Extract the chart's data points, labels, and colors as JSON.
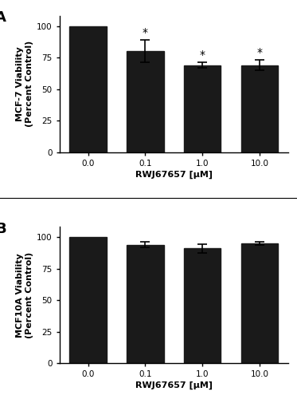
{
  "panel_A": {
    "categories": [
      "0.0",
      "0.1",
      "1.0",
      "10.0"
    ],
    "values": [
      100,
      80,
      69,
      69
    ],
    "errors": [
      0,
      9,
      2,
      4
    ],
    "significance": [
      "",
      "*",
      "*",
      "*"
    ],
    "ylabel": "MCF-7 Viability\n(Percent Control)",
    "xlabel": "RWJ67657 [μM]",
    "ylim": [
      0,
      108
    ],
    "yticks": [
      0,
      25,
      50,
      75,
      100
    ],
    "label": "A"
  },
  "panel_B": {
    "categories": [
      "0.0",
      "0.1",
      "1.0",
      "10.0"
    ],
    "values": [
      100,
      94,
      91,
      95
    ],
    "errors": [
      0,
      2.5,
      3.5,
      1.5
    ],
    "significance": [
      "",
      "",
      "",
      ""
    ],
    "ylabel": "MCF10A Viability\n(Percent Control)",
    "xlabel": "RWJ67657 [μM]",
    "ylim": [
      0,
      108
    ],
    "yticks": [
      0,
      25,
      50,
      75,
      100
    ],
    "label": "B"
  },
  "bar_color": "#1a1a1a",
  "bar_width": 0.65,
  "error_capsize": 4,
  "error_color": "black",
  "error_linewidth": 1.2,
  "sig_fontsize": 10,
  "axis_label_fontsize": 8,
  "tick_fontsize": 7.5,
  "panel_label_fontsize": 13,
  "background_color": "#ffffff"
}
